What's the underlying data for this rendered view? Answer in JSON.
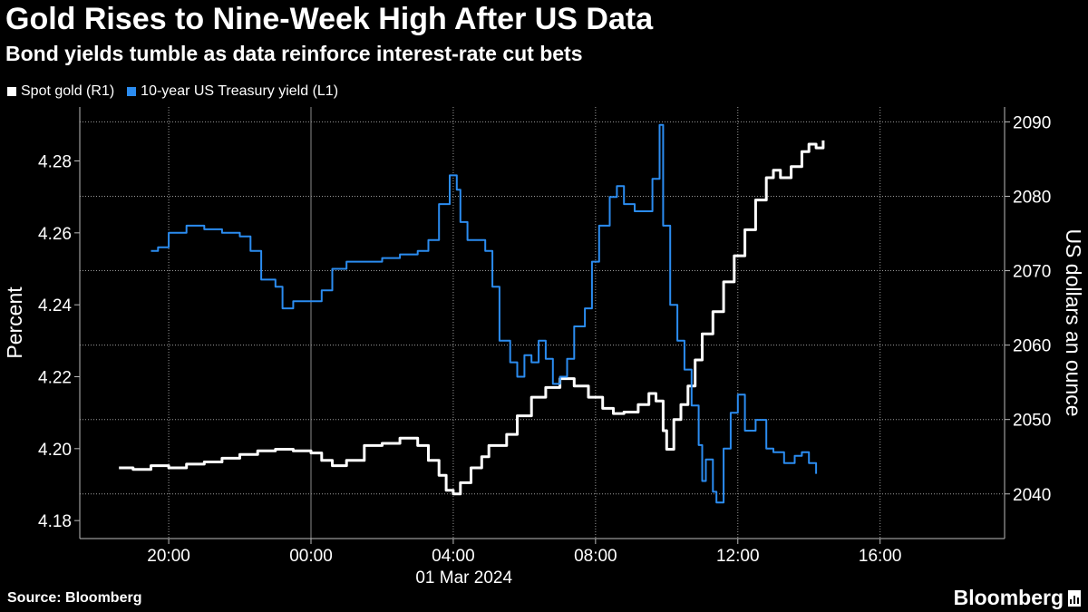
{
  "title": "Gold Rises to Nine-Week High After US Data",
  "subtitle": "Bond yields tumble as data reinforce interest-rate cut bets",
  "source": "Source: Bloomberg",
  "brand": "Bloomberg",
  "legend": [
    {
      "label": "Spot gold (R1)",
      "color": "#ffffff"
    },
    {
      "label": "10-year US Treasury yield (L1)",
      "color": "#2b8cf0"
    }
  ],
  "chart_data": {
    "type": "line",
    "title": "Gold Rises to Nine-Week High After US Data",
    "subtitle": "Bond yields tumble as data reinforce interest-rate cut bets",
    "x_unit": "hours from 29 Feb 2024 00:00 (local)",
    "x_range": [
      17.5,
      43.5
    ],
    "x_ticks": [
      {
        "value": 20,
        "label": "20:00"
      },
      {
        "value": 24,
        "label": "00:00"
      },
      {
        "value": 28,
        "label": "04:00"
      },
      {
        "value": 32,
        "label": "08:00"
      },
      {
        "value": 36,
        "label": "12:00"
      },
      {
        "value": 40,
        "label": "16:00"
      }
    ],
    "x_date_label": "01 Mar 2024",
    "left_axis": {
      "label": "Percent",
      "range": [
        4.175,
        4.295
      ],
      "ticks": [
        "4.18",
        "4.20",
        "4.22",
        "4.24",
        "4.26",
        "4.28"
      ]
    },
    "right_axis": {
      "label": "US dollars an ounce",
      "range": [
        2034,
        2092
      ],
      "ticks": [
        "2040",
        "2050",
        "2060",
        "2070",
        "2080",
        "2090"
      ]
    },
    "grid": true,
    "series": [
      {
        "name": "Spot gold (R1)",
        "axis": "right",
        "color": "#ffffff",
        "points": [
          [
            18.6,
            2043.5
          ],
          [
            19.0,
            2043.3
          ],
          [
            19.5,
            2043.8
          ],
          [
            20.0,
            2043.5
          ],
          [
            20.5,
            2044.0
          ],
          [
            21.0,
            2044.3
          ],
          [
            21.5,
            2044.8
          ],
          [
            22.0,
            2045.3
          ],
          [
            22.5,
            2045.8
          ],
          [
            23.0,
            2046.0
          ],
          [
            23.5,
            2045.8
          ],
          [
            24.0,
            2045.5
          ],
          [
            24.3,
            2044.5
          ],
          [
            24.6,
            2043.8
          ],
          [
            25.0,
            2044.5
          ],
          [
            25.5,
            2046.5
          ],
          [
            26.0,
            2046.8
          ],
          [
            26.5,
            2047.5
          ],
          [
            27.0,
            2046.5
          ],
          [
            27.3,
            2044.5
          ],
          [
            27.6,
            2042.5
          ],
          [
            27.8,
            2040.5
          ],
          [
            28.0,
            2040.0
          ],
          [
            28.2,
            2041.5
          ],
          [
            28.5,
            2043.5
          ],
          [
            28.8,
            2045.0
          ],
          [
            29.0,
            2046.5
          ],
          [
            29.5,
            2048.0
          ],
          [
            29.8,
            2050.5
          ],
          [
            30.2,
            2053.0
          ],
          [
            30.6,
            2054.3
          ],
          [
            31.0,
            2055.5
          ],
          [
            31.4,
            2054.5
          ],
          [
            31.8,
            2053.0
          ],
          [
            32.2,
            2051.5
          ],
          [
            32.5,
            2050.8
          ],
          [
            32.8,
            2051.0
          ],
          [
            33.2,
            2052.0
          ],
          [
            33.5,
            2053.5
          ],
          [
            33.7,
            2052.5
          ],
          [
            33.9,
            2048.5
          ],
          [
            34.0,
            2046.0
          ],
          [
            34.2,
            2050.0
          ],
          [
            34.4,
            2052.0
          ],
          [
            34.6,
            2054.5
          ],
          [
            34.8,
            2058.0
          ],
          [
            35.0,
            2061.5
          ],
          [
            35.3,
            2064.5
          ],
          [
            35.6,
            2068.5
          ],
          [
            35.9,
            2072.0
          ],
          [
            36.2,
            2075.5
          ],
          [
            36.5,
            2079.5
          ],
          [
            36.8,
            2082.5
          ],
          [
            37.0,
            2083.5
          ],
          [
            37.2,
            2082.5
          ],
          [
            37.5,
            2084.0
          ],
          [
            37.8,
            2086.0
          ],
          [
            38.0,
            2087.0
          ],
          [
            38.2,
            2086.5
          ],
          [
            38.4,
            2087.5
          ]
        ]
      },
      {
        "name": "10-year US Treasury yield (L1)",
        "axis": "left",
        "color": "#2b8cf0",
        "points": [
          [
            19.5,
            4.255
          ],
          [
            19.7,
            4.256
          ],
          [
            20.0,
            4.26
          ],
          [
            20.5,
            4.262
          ],
          [
            21.0,
            4.261
          ],
          [
            21.5,
            4.26
          ],
          [
            22.0,
            4.259
          ],
          [
            22.3,
            4.255
          ],
          [
            22.6,
            4.247
          ],
          [
            23.0,
            4.245
          ],
          [
            23.2,
            4.239
          ],
          [
            23.5,
            4.241
          ],
          [
            24.0,
            4.241
          ],
          [
            24.3,
            4.244
          ],
          [
            24.6,
            4.25
          ],
          [
            25.0,
            4.252
          ],
          [
            25.5,
            4.252
          ],
          [
            26.0,
            4.253
          ],
          [
            26.5,
            4.254
          ],
          [
            27.0,
            4.255
          ],
          [
            27.3,
            4.258
          ],
          [
            27.6,
            4.268
          ],
          [
            27.9,
            4.276
          ],
          [
            28.1,
            4.272
          ],
          [
            28.2,
            4.263
          ],
          [
            28.4,
            4.258
          ],
          [
            28.7,
            4.258
          ],
          [
            28.9,
            4.255
          ],
          [
            29.1,
            4.245
          ],
          [
            29.3,
            4.23
          ],
          [
            29.6,
            4.224
          ],
          [
            29.8,
            4.22
          ],
          [
            30.0,
            4.226
          ],
          [
            30.2,
            4.224
          ],
          [
            30.4,
            4.23
          ],
          [
            30.6,
            4.225
          ],
          [
            30.8,
            4.218
          ],
          [
            31.0,
            4.22
          ],
          [
            31.2,
            4.225
          ],
          [
            31.4,
            4.234
          ],
          [
            31.7,
            4.239
          ],
          [
            31.9,
            4.252
          ],
          [
            32.1,
            4.262
          ],
          [
            32.4,
            4.27
          ],
          [
            32.6,
            4.273
          ],
          [
            32.8,
            4.268
          ],
          [
            33.1,
            4.266
          ],
          [
            33.4,
            4.266
          ],
          [
            33.6,
            4.275
          ],
          [
            33.8,
            4.29
          ],
          [
            33.9,
            4.262
          ],
          [
            34.1,
            4.24
          ],
          [
            34.3,
            4.23
          ],
          [
            34.5,
            4.222
          ],
          [
            34.7,
            4.212
          ],
          [
            34.9,
            4.201
          ],
          [
            35.0,
            4.191
          ],
          [
            35.1,
            4.197
          ],
          [
            35.3,
            4.188
          ],
          [
            35.4,
            4.185
          ],
          [
            35.6,
            4.2
          ],
          [
            35.8,
            4.21
          ],
          [
            36.0,
            4.215
          ],
          [
            36.2,
            4.205
          ],
          [
            36.5,
            4.208
          ],
          [
            36.8,
            4.2
          ],
          [
            37.0,
            4.199
          ],
          [
            37.3,
            4.196
          ],
          [
            37.6,
            4.198
          ],
          [
            37.8,
            4.199
          ],
          [
            38.0,
            4.196
          ],
          [
            38.2,
            4.193
          ]
        ]
      }
    ]
  }
}
